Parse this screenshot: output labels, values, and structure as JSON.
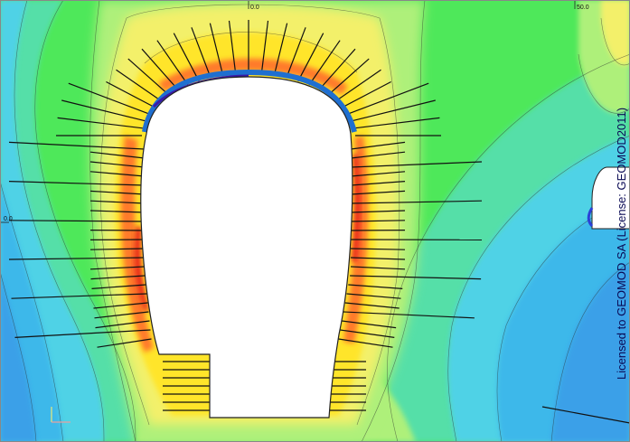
{
  "viewport": {
    "ruler_labels": {
      "top_center": "0.0",
      "top_right": "50.0",
      "left_mid": "0.0"
    },
    "watermark": "Licensed to GEOMOD SA (License: GEOMOD2011)"
  },
  "legend_colors": {
    "very_low": "#3aa0e8",
    "low": "#4fd2e6",
    "mid_low": "#55dfa8",
    "mid": "#4ee85a",
    "mid_high": "#aef07a",
    "high": "#f3f06a",
    "higher": "#ffe52c",
    "peak": "#ff7a2a",
    "max": "#e8241c"
  },
  "icons": {
    "axis_indicator": "axis-triad-icon"
  }
}
